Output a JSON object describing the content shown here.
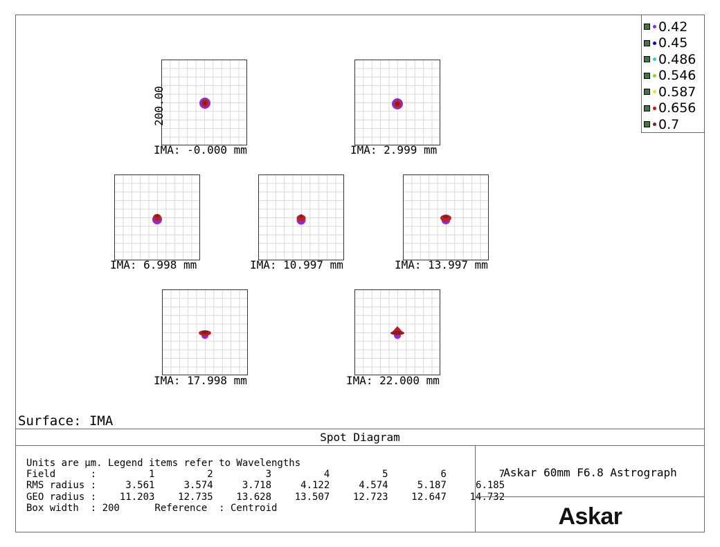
{
  "legend": {
    "items": [
      {
        "label": "0.42",
        "color": "#8a2be2"
      },
      {
        "label": "0.45",
        "color": "#0000c8"
      },
      {
        "label": "0.486",
        "color": "#22d3d3"
      },
      {
        "label": "0.546",
        "color": "#7fe01a"
      },
      {
        "label": "0.587",
        "color": "#f0e020"
      },
      {
        "label": "0.656",
        "color": "#d01010"
      },
      {
        "label": "0.7",
        "color": "#8b1a1a"
      }
    ]
  },
  "scale_label": "200.00",
  "fields": [
    {
      "label": "IMA: -0.000 mm"
    },
    {
      "label": "IMA: 2.999 mm"
    },
    {
      "label": "IMA: 6.998 mm"
    },
    {
      "label": "IMA: 10.997 mm"
    },
    {
      "label": "IMA: 13.997 mm"
    },
    {
      "label": "IMA: 17.998 mm"
    },
    {
      "label": "IMA: 22.000 mm"
    }
  ],
  "surface": "Surface: IMA",
  "title": "Spot Diagram",
  "info": {
    "line1": "Units are µm. Legend items refer to Wavelengths",
    "line2": "Field      :         1         2         3         4         5         6         7",
    "line3": "RMS radius :     3.561     3.574     3.718     4.122     4.574     5.187     6.185",
    "line4": "GEO radius :    11.203    12.735    13.628    13.507    12.723    12.647    14.732",
    "line5": "Box width  : 200      Reference  : Centroid"
  },
  "system_name": "Askar 60mm F6.8 Astrograph",
  "logo_text": "Askar"
}
